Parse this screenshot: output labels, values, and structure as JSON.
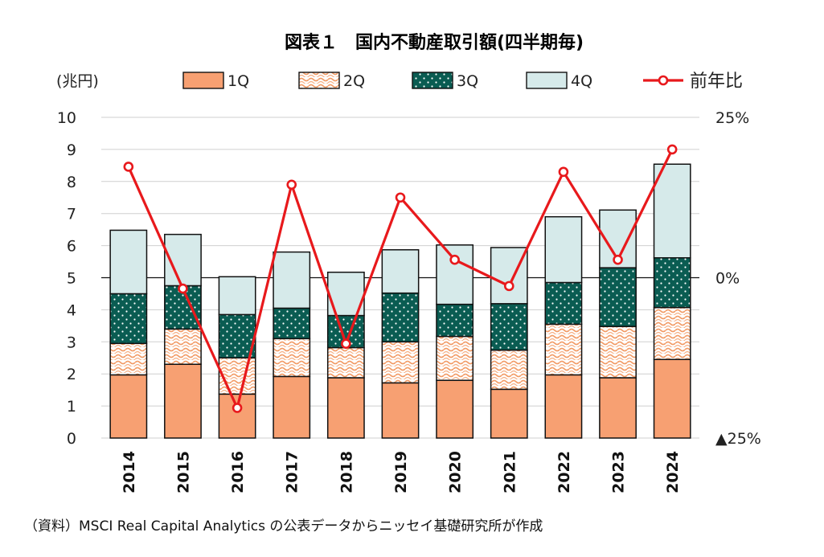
{
  "chart_data": {
    "type": "bar",
    "stacked": true,
    "title": "図表１　国内不動産取引額(四半期毎)",
    "ylabel": "(兆円)",
    "ylim": [
      0,
      10
    ],
    "y_ticks": [
      "0",
      "1",
      "2",
      "3",
      "4",
      "5",
      "6",
      "7",
      "8",
      "9",
      "10"
    ],
    "y2lim": [
      -25,
      25
    ],
    "y2_ticks": [
      "▲25%",
      "0%",
      "25%"
    ],
    "grid": true,
    "legend_placement": "top",
    "categories": [
      "2014",
      "2015",
      "2016",
      "2017",
      "2018",
      "2019",
      "2020",
      "2021",
      "2022",
      "2023",
      "2024"
    ],
    "series": [
      {
        "name": "1Q",
        "type": "bar",
        "color": "#f7a072",
        "pattern": "solid",
        "values": [
          1.97,
          2.3,
          1.37,
          1.92,
          1.88,
          1.72,
          1.8,
          1.52,
          1.97,
          1.88,
          2.45
        ]
      },
      {
        "name": "2Q",
        "type": "bar",
        "color": "#f29a64",
        "pattern": "wavy",
        "values": [
          0.98,
          1.1,
          1.13,
          1.18,
          0.94,
          1.28,
          1.37,
          1.22,
          1.58,
          1.6,
          1.62
        ]
      },
      {
        "name": "3Q",
        "type": "bar",
        "color": "#0a5c52",
        "pattern": "dotted",
        "values": [
          1.55,
          1.35,
          1.35,
          0.95,
          1.0,
          1.52,
          1.0,
          1.45,
          1.3,
          1.83,
          1.55
        ]
      },
      {
        "name": "4Q",
        "type": "bar",
        "color": "#d6eaea",
        "pattern": "solid",
        "values": [
          1.98,
          1.6,
          1.18,
          1.75,
          1.35,
          1.35,
          1.85,
          1.75,
          2.05,
          1.8,
          2.92
        ]
      },
      {
        "name": "前年比",
        "type": "line",
        "axis": "y2",
        "color": "#e8191c",
        "values": [
          17.3,
          -1.7,
          -20.3,
          14.5,
          -10.3,
          12.5,
          2.8,
          -1.3,
          16.5,
          2.8,
          20.0
        ]
      }
    ],
    "source": "（資料）MSCI Real Capital Analytics の公表データからニッセイ基礎研究所が作成"
  }
}
